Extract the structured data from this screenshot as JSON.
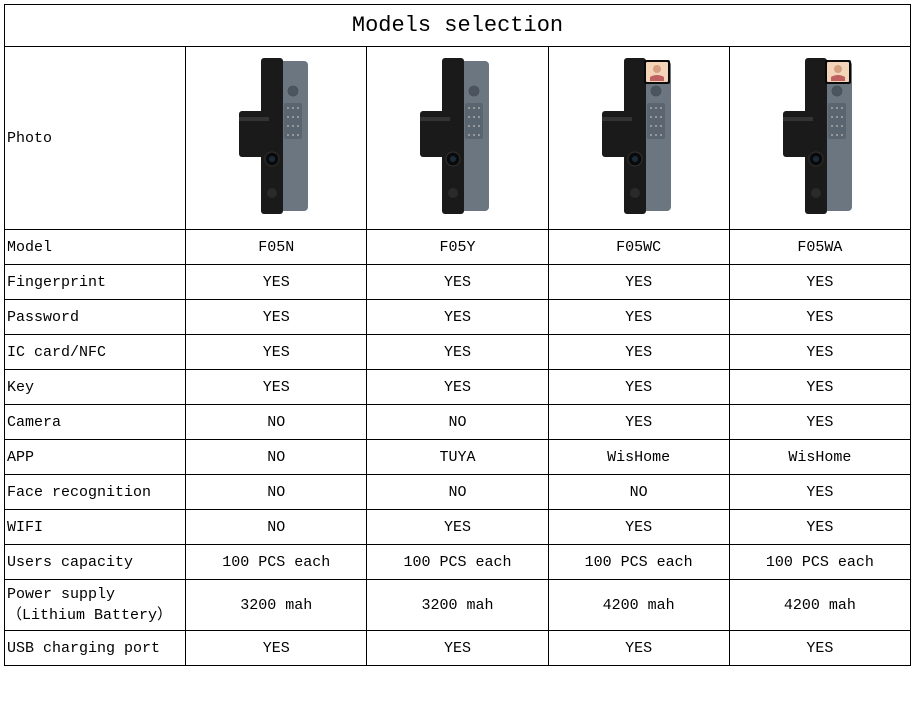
{
  "title": "Models selection",
  "table": {
    "background_color": "#ffffff",
    "border_color": "#000000",
    "text_color": "#000000",
    "title_fontsize": 22,
    "cell_fontsize": 15,
    "font_family": "SimSun, Courier New, monospace",
    "label_column_width": 163,
    "model_column_width": 186,
    "photo_row_height": 182,
    "data_row_height": 35
  },
  "columns": [
    {
      "id": "f05n",
      "has_camera_screen": false,
      "lock_color": "#1a1a1a",
      "panel_color": "#6b7680"
    },
    {
      "id": "f05y",
      "has_camera_screen": false,
      "lock_color": "#1a1a1a",
      "panel_color": "#6b7680"
    },
    {
      "id": "f05wc",
      "has_camera_screen": true,
      "lock_color": "#1a1a1a",
      "panel_color": "#6b7680",
      "screen_color": "#f4d4b8"
    },
    {
      "id": "f05wa",
      "has_camera_screen": true,
      "lock_color": "#1a1a1a",
      "panel_color": "#6b7680",
      "screen_color": "#f4d4b8"
    }
  ],
  "rows": [
    {
      "label": "Photo",
      "is_photo": true
    },
    {
      "label": "Model",
      "values": [
        "F05N",
        "F05Y",
        "F05WC",
        "F05WA"
      ]
    },
    {
      "label": "Fingerprint",
      "values": [
        "YES",
        "YES",
        "YES",
        "YES"
      ]
    },
    {
      "label": "Password",
      "values": [
        "YES",
        "YES",
        "YES",
        "YES"
      ]
    },
    {
      "label": "IC card/NFC",
      "values": [
        "YES",
        "YES",
        "YES",
        "YES"
      ]
    },
    {
      "label": "Key",
      "values": [
        "YES",
        "YES",
        "YES",
        "YES"
      ]
    },
    {
      "label": "Camera",
      "values": [
        "NO",
        "NO",
        "YES",
        "YES"
      ]
    },
    {
      "label": "APP",
      "values": [
        "NO",
        "TUYA",
        "WisHome",
        "WisHome"
      ]
    },
    {
      "label": "Face recognition",
      "values": [
        "NO",
        "NO",
        "NO",
        "YES"
      ]
    },
    {
      "label": "WIFI",
      "values": [
        "NO",
        "YES",
        "YES",
        "YES"
      ]
    },
    {
      "label": "Users capacity",
      "values": [
        "100 PCS each",
        "100 PCS each",
        "100 PCS each",
        "100 PCS each"
      ]
    },
    {
      "label": "Power supply\n（Lithium Battery）",
      "values": [
        "3200 mah",
        "3200 mah",
        "4200 mah",
        "4200 mah"
      ]
    },
    {
      "label": "USB charging port",
      "values": [
        "YES",
        "YES",
        "YES",
        "YES"
      ]
    }
  ]
}
